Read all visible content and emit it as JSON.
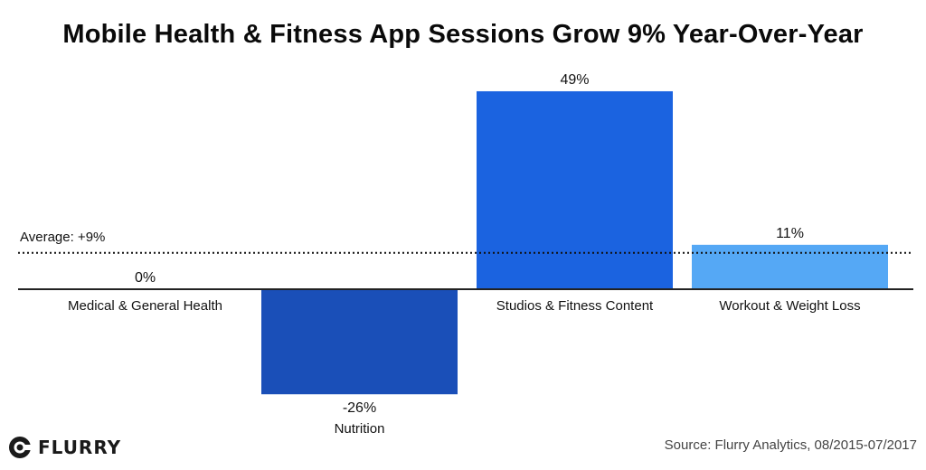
{
  "title": "Mobile Health & Fitness App Sessions Grow 9% Year-Over-Year",
  "source": "Source: Flurry Analytics, 08/2015-07/2017",
  "logo": {
    "text": "FLURRY",
    "icon": "flurry-logo-icon"
  },
  "colors": {
    "medical": "#1b5fd8",
    "nutrition": "#1a4fb8",
    "studios": "#1b63e0",
    "workout": "#55a8f5",
    "axis": "#222222",
    "average_line": "#111111"
  },
  "chart_data": {
    "type": "bar",
    "title": "Mobile Health & Fitness App Sessions Grow 9% Year-Over-Year",
    "categories": [
      "Medical & General Health",
      "Nutrition",
      "Studios & Fitness Content",
      "Workout & Weight Loss"
    ],
    "values": [
      0,
      -26,
      49,
      11
    ],
    "value_labels": [
      "0%",
      "-26%",
      "49%",
      "11%"
    ],
    "unit": "%",
    "ylim": [
      -28,
      51
    ],
    "reference_line": {
      "label": "Average: +9%",
      "value": 9
    },
    "grid": false,
    "legend": "none"
  }
}
